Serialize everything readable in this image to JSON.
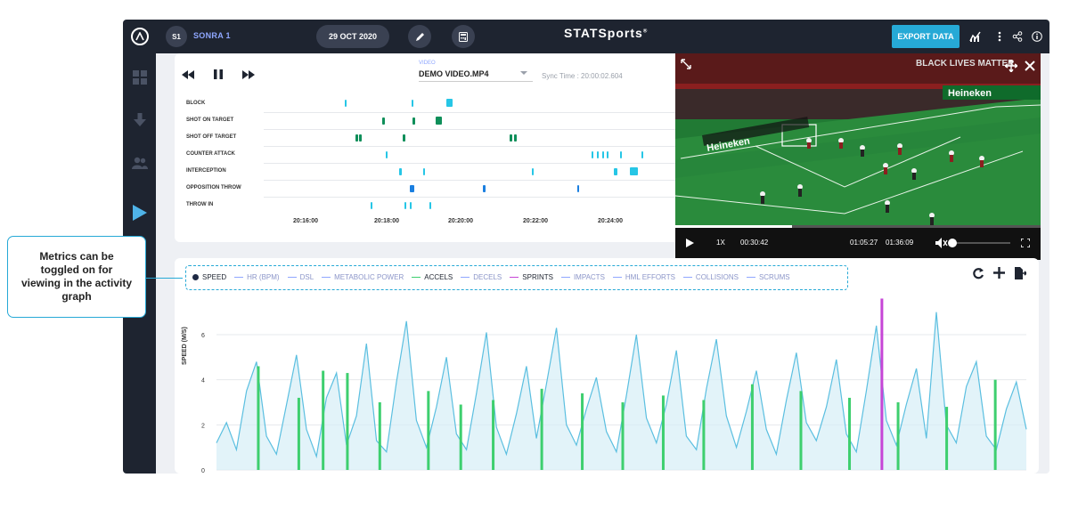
{
  "header": {
    "player_initials": "S1",
    "player_name": "SONRA 1",
    "date": "29 OCT 2020",
    "brand_main": "STATSports",
    "brand_mark": "®",
    "export_label": "EXPORT DATA"
  },
  "video_panel": {
    "video_label": "VIDEO",
    "video_name": "DEMO VIDEO.MP4",
    "sync_text": "Sync Time : 20:00:02.604",
    "events": [
      "BLOCK",
      "SHOT ON TARGET",
      "SHOT OFF TARGET",
      "COUNTER ATTACK",
      "INTERCEPTION",
      "OPPOSITION THROW",
      "THROW IN"
    ],
    "time_ticks": [
      "20:16:00",
      "20:18:00",
      "20:20:00",
      "20:22:00",
      "20:24:00"
    ]
  },
  "video_player": {
    "speed": "1X",
    "current_time": "00:30:42",
    "time_a": "01:05:27",
    "time_b": "01:36:09",
    "progress_fraction": 0.32,
    "volume_fraction": 0.0,
    "banner_text": "BLACK LIVES MATTER",
    "ad_text": "Heineken"
  },
  "activity_graph": {
    "legend": [
      {
        "label": "SPEED",
        "color": "#1e2a44",
        "active": true
      },
      {
        "label": "HR (BPM)",
        "color": "#8fa7ff",
        "active": false
      },
      {
        "label": "DSL",
        "color": "#8fa7ff",
        "active": false
      },
      {
        "label": "METABOLIC POWER",
        "color": "#8fa7ff",
        "active": false
      },
      {
        "label": "ACCELS",
        "color": "#3ecf6f",
        "active": true
      },
      {
        "label": "DECELS",
        "color": "#8fa7ff",
        "active": false
      },
      {
        "label": "SPRINTS",
        "color": "#c646d6",
        "active": true
      },
      {
        "label": "IMPACTS",
        "color": "#8fa7ff",
        "active": false
      },
      {
        "label": "HML EFFORTS",
        "color": "#8fa7ff",
        "active": false
      },
      {
        "label": "COLLISIONS",
        "color": "#8fa7ff",
        "active": false
      },
      {
        "label": "SCRUMS",
        "color": "#8fa7ff",
        "active": false
      }
    ],
    "ylabel": "SPEED (M/S)",
    "yticks": [
      "6",
      "4",
      "2",
      "0"
    ]
  },
  "chart_data": {
    "type": "line",
    "title": "",
    "xlabel": "",
    "ylabel": "SPEED (M/S)",
    "ylim": [
      0,
      7.5
    ],
    "grid": true,
    "series": [
      {
        "name": "SPEED",
        "color": "#5bbfe0",
        "values": [
          1.2,
          2.1,
          0.9,
          3.5,
          4.8,
          1.5,
          0.7,
          2.9,
          5.1,
          1.8,
          0.6,
          3.2,
          4.3,
          1.1,
          2.4,
          5.6,
          1.3,
          0.8,
          3.9,
          6.6,
          2.2,
          1.0,
          2.8,
          5.0,
          1.6,
          0.9,
          3.4,
          6.1,
          1.9,
          0.7,
          2.5,
          4.6,
          1.4,
          3.8,
          6.3,
          2.0,
          1.1,
          2.7,
          4.1,
          1.7,
          0.8,
          3.3,
          6.0,
          2.3,
          1.2,
          2.9,
          5.3,
          1.5,
          0.9,
          3.6,
          5.8,
          2.4,
          1.0,
          2.6,
          4.4,
          1.8,
          0.7,
          3.1,
          5.2,
          2.1,
          1.3,
          2.8,
          4.9,
          1.6,
          0.8,
          3.5,
          6.4,
          2.2,
          1.1,
          2.9,
          4.5,
          1.4,
          7.0,
          2.0,
          1.2,
          3.7,
          4.8,
          1.5,
          0.9,
          2.7,
          3.9,
          1.8
        ]
      },
      {
        "name": "ACCELS",
        "color": "#3ecf6f",
        "bars": [
          [
            0.05,
            4.6
          ],
          [
            0.1,
            3.2
          ],
          [
            0.13,
            4.4
          ],
          [
            0.16,
            4.3
          ],
          [
            0.2,
            3.0
          ],
          [
            0.26,
            3.5
          ],
          [
            0.3,
            2.9
          ],
          [
            0.34,
            3.1
          ],
          [
            0.4,
            3.6
          ],
          [
            0.45,
            3.4
          ],
          [
            0.5,
            3.0
          ],
          [
            0.55,
            3.3
          ],
          [
            0.6,
            3.1
          ],
          [
            0.66,
            3.8
          ],
          [
            0.72,
            3.5
          ],
          [
            0.78,
            3.2
          ],
          [
            0.84,
            3.0
          ],
          [
            0.9,
            2.8
          ],
          [
            0.96,
            4.0
          ]
        ]
      },
      {
        "name": "SPRINTS",
        "color": "#c646d6",
        "bars": [
          [
            0.82,
            7.6
          ]
        ]
      }
    ]
  }
}
